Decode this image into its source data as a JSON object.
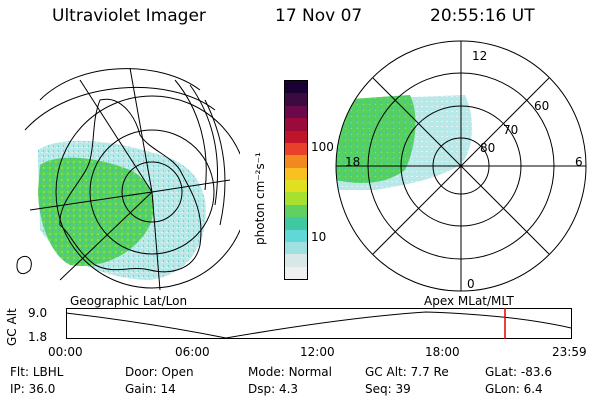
{
  "header": {
    "instrument": "Ultraviolet Imager",
    "date": "17 Nov 07",
    "time": "20:55:16 UT"
  },
  "colorbar": {
    "label": "photon cm⁻²s⁻¹",
    "ticks": [
      "100",
      "10"
    ],
    "colors": [
      "#1a0033",
      "#3a0a40",
      "#6a0a4a",
      "#9a0a3a",
      "#c0142a",
      "#e8402a",
      "#f08a20",
      "#f8c020",
      "#e0e020",
      "#a8e030",
      "#60d060",
      "#40c8a0",
      "#60d8d8",
      "#a0e0e0",
      "#d8e8e8",
      "#f0f0f0"
    ]
  },
  "left_map": {
    "caption": "Geographic Lat/Lon"
  },
  "right_map": {
    "caption": "Apex MLat/MLT",
    "mlt_labels": {
      "top": "12",
      "left": "18",
      "right": "6",
      "bottom": "0"
    },
    "lat_labels": [
      "60",
      "70",
      "80"
    ]
  },
  "altitude_plot": {
    "ylabel": "GC Alt",
    "y_ticks": [
      "9.0",
      "1.8"
    ],
    "x_ticks": [
      "00:00",
      "06:00",
      "12:00",
      "18:00",
      "23:59"
    ],
    "marker_color": "#e00000"
  },
  "info": {
    "row1": [
      {
        "label": "Flt:",
        "value": "LBHL"
      },
      {
        "label": "Door:",
        "value": "Open"
      },
      {
        "label": "Mode:",
        "value": "Normal"
      },
      {
        "label": "GC Alt:",
        "value": "7.7 Re"
      },
      {
        "label": "GLat:",
        "value": "-83.6"
      }
    ],
    "row2": [
      {
        "label": "IP:",
        "value": "36.0"
      },
      {
        "label": "Gain:",
        "value": "14"
      },
      {
        "label": "Dsp:",
        "value": "4.3"
      },
      {
        "label": "Seq:",
        "value": "39"
      },
      {
        "label": "GLon:",
        "value": "6.4"
      }
    ]
  }
}
